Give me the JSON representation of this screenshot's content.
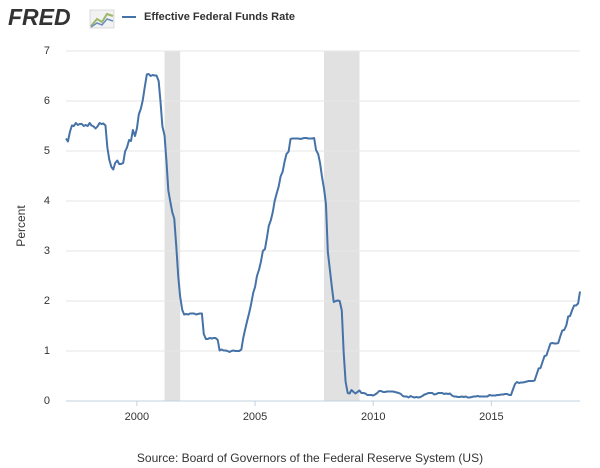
{
  "logo": "FRED",
  "chart_data": {
    "type": "line",
    "y_label": "Percent",
    "source": "Source: Board of Governors of the Federal Reserve System (US)",
    "x": [
      1997,
      1997.08,
      1997.17,
      1997.25,
      1997.33,
      1997.42,
      1997.5,
      1997.58,
      1997.67,
      1997.75,
      1997.83,
      1997.92,
      1998,
      1998.08,
      1998.17,
      1998.25,
      1998.33,
      1998.42,
      1998.5,
      1998.58,
      1998.67,
      1998.75,
      1998.83,
      1998.92,
      1999,
      1999.08,
      1999.17,
      1999.25,
      1999.33,
      1999.42,
      1999.5,
      1999.58,
      1999.67,
      1999.75,
      1999.83,
      1999.92,
      2000,
      2000.08,
      2000.17,
      2000.25,
      2000.33,
      2000.42,
      2000.5,
      2000.58,
      2000.67,
      2000.75,
      2000.83,
      2000.92,
      2001,
      2001.08,
      2001.17,
      2001.25,
      2001.33,
      2001.42,
      2001.5,
      2001.58,
      2001.67,
      2001.75,
      2001.83,
      2001.92,
      2002,
      2002.08,
      2002.17,
      2002.25,
      2002.33,
      2002.42,
      2002.5,
      2002.58,
      2002.67,
      2002.75,
      2002.83,
      2002.92,
      2003,
      2003.08,
      2003.17,
      2003.25,
      2003.33,
      2003.42,
      2003.5,
      2003.58,
      2003.67,
      2003.75,
      2003.83,
      2003.92,
      2004,
      2004.08,
      2004.17,
      2004.25,
      2004.33,
      2004.42,
      2004.5,
      2004.58,
      2004.67,
      2004.75,
      2004.83,
      2004.92,
      2005,
      2005.08,
      2005.17,
      2005.25,
      2005.33,
      2005.42,
      2005.5,
      2005.58,
      2005.67,
      2005.75,
      2005.83,
      2005.92,
      2006,
      2006.08,
      2006.17,
      2006.25,
      2006.33,
      2006.42,
      2006.5,
      2006.58,
      2006.67,
      2006.75,
      2006.83,
      2006.92,
      2007,
      2007.08,
      2007.17,
      2007.25,
      2007.33,
      2007.42,
      2007.5,
      2007.58,
      2007.67,
      2007.75,
      2007.83,
      2007.92,
      2008,
      2008.08,
      2008.17,
      2008.25,
      2008.33,
      2008.42,
      2008.5,
      2008.58,
      2008.67,
      2008.75,
      2008.83,
      2008.92,
      2009,
      2009.08,
      2009.17,
      2009.25,
      2009.33,
      2009.42,
      2009.5,
      2009.58,
      2009.67,
      2009.75,
      2009.83,
      2009.92,
      2010,
      2010.08,
      2010.17,
      2010.25,
      2010.33,
      2010.42,
      2010.5,
      2010.58,
      2010.67,
      2010.75,
      2010.83,
      2010.92,
      2011,
      2011.08,
      2011.17,
      2011.25,
      2011.33,
      2011.42,
      2011.5,
      2011.58,
      2011.67,
      2011.75,
      2011.83,
      2011.92,
      2012,
      2012.08,
      2012.17,
      2012.25,
      2012.33,
      2012.42,
      2012.5,
      2012.58,
      2012.67,
      2012.75,
      2012.83,
      2012.92,
      2013,
      2013.08,
      2013.17,
      2013.25,
      2013.33,
      2013.42,
      2013.5,
      2013.58,
      2013.67,
      2013.75,
      2013.83,
      2013.92,
      2014,
      2014.08,
      2014.17,
      2014.25,
      2014.33,
      2014.42,
      2014.5,
      2014.58,
      2014.67,
      2014.75,
      2014.83,
      2014.92,
      2015,
      2015.08,
      2015.17,
      2015.25,
      2015.33,
      2015.42,
      2015.5,
      2015.58,
      2015.67,
      2015.75,
      2015.83,
      2015.92,
      2016,
      2016.08,
      2016.17,
      2016.25,
      2016.33,
      2016.42,
      2016.5,
      2016.58,
      2016.67,
      2016.75,
      2016.83,
      2016.92,
      2017,
      2017.08,
      2017.17,
      2017.25,
      2017.33,
      2017.42,
      2017.5,
      2017.58,
      2017.67,
      2017.75,
      2017.83,
      2017.92,
      2018,
      2018.08,
      2018.17,
      2018.25,
      2018.33,
      2018.42,
      2018.5,
      2018.58,
      2018.67,
      2018.75
    ],
    "series": [
      {
        "name": "Effective Federal Funds Rate",
        "color": "#4572a7",
        "values": [
          5.25,
          5.19,
          5.39,
          5.51,
          5.5,
          5.56,
          5.52,
          5.54,
          5.54,
          5.5,
          5.52,
          5.5,
          5.56,
          5.51,
          5.49,
          5.45,
          5.49,
          5.56,
          5.54,
          5.55,
          5.51,
          5.07,
          4.83,
          4.68,
          4.63,
          4.76,
          4.81,
          4.74,
          4.74,
          4.76,
          4.99,
          5.07,
          5.22,
          5.2,
          5.42,
          5.3,
          5.45,
          5.73,
          5.85,
          6.02,
          6.27,
          6.53,
          6.54,
          6.5,
          6.52,
          6.51,
          6.51,
          6.4,
          5.98,
          5.49,
          5.31,
          4.8,
          4.21,
          3.97,
          3.77,
          3.65,
          3.07,
          2.49,
          2.09,
          1.82,
          1.73,
          1.74,
          1.73,
          1.75,
          1.75,
          1.75,
          1.73,
          1.74,
          1.75,
          1.75,
          1.34,
          1.24,
          1.24,
          1.26,
          1.25,
          1.26,
          1.26,
          1.22,
          1.01,
          1.03,
          1.01,
          1.01,
          1.0,
          0.98,
          1.0,
          1.01,
          1.0,
          1.0,
          1.0,
          1.03,
          1.26,
          1.43,
          1.61,
          1.76,
          1.93,
          2.16,
          2.28,
          2.5,
          2.63,
          2.79,
          3.0,
          3.04,
          3.26,
          3.5,
          3.62,
          3.78,
          4.0,
          4.16,
          4.29,
          4.49,
          4.59,
          4.79,
          4.94,
          4.99,
          5.24,
          5.25,
          5.25,
          5.25,
          5.25,
          5.24,
          5.25,
          5.26,
          5.26,
          5.25,
          5.25,
          5.25,
          5.26,
          5.02,
          4.94,
          4.76,
          4.49,
          4.24,
          3.94,
          2.98,
          2.61,
          2.28,
          1.98,
          2.0,
          2.01,
          2.0,
          1.81,
          0.97,
          0.39,
          0.16,
          0.15,
          0.22,
          0.18,
          0.15,
          0.18,
          0.21,
          0.16,
          0.16,
          0.15,
          0.12,
          0.12,
          0.12,
          0.11,
          0.13,
          0.16,
          0.2,
          0.2,
          0.18,
          0.18,
          0.19,
          0.19,
          0.19,
          0.19,
          0.18,
          0.17,
          0.16,
          0.14,
          0.1,
          0.09,
          0.09,
          0.07,
          0.1,
          0.08,
          0.07,
          0.08,
          0.07,
          0.08,
          0.1,
          0.13,
          0.14,
          0.16,
          0.16,
          0.16,
          0.13,
          0.14,
          0.16,
          0.16,
          0.16,
          0.14,
          0.15,
          0.14,
          0.15,
          0.11,
          0.09,
          0.09,
          0.08,
          0.08,
          0.09,
          0.08,
          0.09,
          0.07,
          0.07,
          0.08,
          0.09,
          0.09,
          0.1,
          0.09,
          0.09,
          0.09,
          0.09,
          0.09,
          0.12,
          0.11,
          0.11,
          0.11,
          0.12,
          0.12,
          0.13,
          0.13,
          0.14,
          0.14,
          0.12,
          0.12,
          0.24,
          0.34,
          0.38,
          0.36,
          0.37,
          0.37,
          0.38,
          0.39,
          0.4,
          0.4,
          0.4,
          0.41,
          0.54,
          0.65,
          0.66,
          0.79,
          0.9,
          0.91,
          1.04,
          1.15,
          1.16,
          1.15,
          1.15,
          1.16,
          1.3,
          1.41,
          1.42,
          1.51,
          1.69,
          1.7,
          1.82,
          1.91,
          1.91,
          1.95,
          2.19
        ]
      }
    ],
    "recessions": [
      [
        2001.17,
        2001.83
      ],
      [
        2007.92,
        2009.42
      ]
    ],
    "recession_color": "#e1e1e1",
    "xlim": [
      1997,
      2018.75
    ],
    "xticks": [
      2000,
      2005,
      2010,
      2015
    ],
    "ylim": [
      0,
      7
    ],
    "yticks": [
      0,
      1,
      2,
      3,
      4,
      5,
      6,
      7
    ],
    "grid": true
  }
}
